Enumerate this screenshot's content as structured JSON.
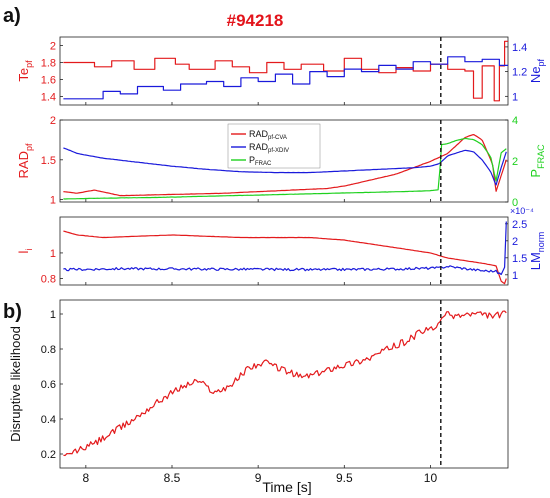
{
  "figure": {
    "panel_a_label": "a)",
    "panel_b_label": "b)",
    "shot_title": "#94218",
    "xlabel": "Time [s]",
    "disruption_marker_time": 10.06
  },
  "colors": {
    "red": "#e31a1c",
    "blue": "#1a1adb",
    "green": "#1fd11f",
    "black": "#111111",
    "title_red": "#e3141b"
  },
  "chart_data": [
    {
      "id": "te-ne",
      "type": "line",
      "xlim": [
        7.85,
        10.45
      ],
      "y_left": {
        "label": "Te",
        "label_sub": "pf",
        "ticks": [
          1.4,
          1.6,
          1.8,
          2
        ],
        "lim": [
          1.3,
          2.1
        ],
        "color": "#e31a1c"
      },
      "y_right": {
        "label": "Ne",
        "label_sub": "pf",
        "ticks": [
          1,
          1.2,
          1.4
        ],
        "lim": [
          0.93,
          1.48
        ],
        "color": "#1a1adb"
      },
      "series": [
        {
          "axis": "left",
          "color": "#e31a1c",
          "step": true,
          "x": [
            7.87,
            8.05,
            8.15,
            8.28,
            8.4,
            8.52,
            8.6,
            8.75,
            8.85,
            8.95,
            9.05,
            9.15,
            9.25,
            9.38,
            9.5,
            9.6,
            9.7,
            9.8,
            9.9,
            10.0,
            10.1,
            10.2,
            10.25,
            10.3,
            10.37,
            10.4,
            10.43
          ],
          "y": [
            1.8,
            1.75,
            1.82,
            1.72,
            1.85,
            1.78,
            1.72,
            1.82,
            1.75,
            1.68,
            1.8,
            1.72,
            1.78,
            1.7,
            1.85,
            1.72,
            1.68,
            1.74,
            1.7,
            1.78,
            1.72,
            1.7,
            1.38,
            1.76,
            1.35,
            1.76,
            2.05
          ]
        },
        {
          "axis": "right",
          "color": "#1a1adb",
          "step": true,
          "x": [
            7.87,
            8.0,
            8.1,
            8.2,
            8.3,
            8.45,
            8.55,
            8.7,
            8.8,
            8.9,
            9.0,
            9.1,
            9.2,
            9.3,
            9.4,
            9.5,
            9.6,
            9.7,
            9.8,
            9.9,
            10.0,
            10.1,
            10.2,
            10.3,
            10.4
          ],
          "y": [
            0.98,
            0.98,
            1.04,
            1.02,
            1.08,
            1.05,
            1.1,
            1.12,
            1.08,
            1.15,
            1.12,
            1.18,
            1.1,
            1.2,
            1.16,
            1.22,
            1.2,
            1.25,
            1.22,
            1.28,
            1.26,
            1.32,
            1.28,
            1.3,
            1.25
          ]
        }
      ]
    },
    {
      "id": "rad",
      "type": "line",
      "xlim": [
        7.85,
        10.45
      ],
      "y_left": {
        "label": "RAD",
        "label_sub": "pf",
        "ticks": [
          1,
          1.5,
          2
        ],
        "lim": [
          0.97,
          2.0
        ],
        "color": "#e31a1c"
      },
      "y_right": {
        "label": "P",
        "label_sub": "FRAC",
        "ticks": [
          0,
          2,
          4
        ],
        "lim": [
          0,
          4
        ],
        "color": "#1fd11f"
      },
      "legend": {
        "placement": "top-center",
        "entries": [
          {
            "base": "RAD",
            "sub": "pf-CVA",
            "color": "#e31a1c"
          },
          {
            "base": "RAD",
            "sub": "pf-XDIV",
            "color": "#1a1adb"
          },
          {
            "base": "P",
            "sub": "FRAC",
            "color": "#1fd11f"
          }
        ]
      },
      "series": [
        {
          "axis": "left",
          "color": "#e31a1c",
          "x": [
            7.87,
            7.95,
            8.05,
            8.2,
            8.4,
            8.6,
            8.8,
            9.0,
            9.2,
            9.4,
            9.5,
            9.6,
            9.7,
            9.8,
            9.9,
            10.0,
            10.05,
            10.1,
            10.15,
            10.2,
            10.25,
            10.3,
            10.33,
            10.36,
            10.38,
            10.41,
            10.44
          ],
          "y": [
            1.1,
            1.08,
            1.12,
            1.05,
            1.06,
            1.07,
            1.08,
            1.1,
            1.12,
            1.14,
            1.17,
            1.22,
            1.27,
            1.32,
            1.4,
            1.48,
            1.53,
            1.58,
            1.68,
            1.78,
            1.82,
            1.75,
            1.6,
            1.45,
            1.1,
            1.3,
            1.5
          ]
        },
        {
          "axis": "left",
          "color": "#1a1adb",
          "x": [
            7.87,
            7.95,
            8.1,
            8.3,
            8.5,
            8.7,
            8.9,
            9.1,
            9.3,
            9.5,
            9.7,
            9.9,
            10.0,
            10.05,
            10.1,
            10.2,
            10.25,
            10.3,
            10.35,
            10.38,
            10.41,
            10.44
          ],
          "y": [
            1.65,
            1.58,
            1.52,
            1.47,
            1.42,
            1.38,
            1.35,
            1.34,
            1.34,
            1.36,
            1.38,
            1.4,
            1.42,
            1.45,
            1.55,
            1.62,
            1.6,
            1.5,
            1.35,
            1.18,
            1.4,
            1.6
          ]
        },
        {
          "axis": "right",
          "color": "#1fd11f",
          "x": [
            7.87,
            8.0,
            8.2,
            8.4,
            8.6,
            8.8,
            9.0,
            9.2,
            9.4,
            9.6,
            9.8,
            10.0,
            10.05,
            10.06,
            10.1,
            10.15,
            10.2,
            10.25,
            10.3,
            10.35,
            10.38,
            10.41,
            10.44
          ],
          "y": [
            0.15,
            0.17,
            0.2,
            0.22,
            0.26,
            0.3,
            0.34,
            0.38,
            0.42,
            0.46,
            0.5,
            0.55,
            0.6,
            2.8,
            2.85,
            3.0,
            3.1,
            3.05,
            2.8,
            2.2,
            1.0,
            2.4,
            2.6
          ]
        }
      ]
    },
    {
      "id": "li-lm",
      "type": "line",
      "xlim": [
        7.85,
        10.45
      ],
      "y_left": {
        "label": "l",
        "label_sub": "i",
        "ticks": [
          0.8,
          1
        ],
        "lim": [
          0.75,
          1.28
        ],
        "color": "#e31a1c"
      },
      "y_right": {
        "label": "LM",
        "label_sub": "norm",
        "ticks": [
          1,
          1.5,
          2,
          2.5
        ],
        "lim": [
          0.7,
          2.7
        ],
        "color": "#1a1adb",
        "exponent": "×10⁻⁴"
      },
      "series": [
        {
          "axis": "left",
          "color": "#e31a1c",
          "x": [
            7.87,
            7.95,
            8.1,
            8.3,
            8.5,
            8.7,
            8.9,
            9.1,
            9.3,
            9.5,
            9.6,
            9.7,
            9.8,
            9.9,
            10.0,
            10.05,
            10.1,
            10.2,
            10.3,
            10.38,
            10.41,
            10.43,
            10.44
          ],
          "y": [
            1.17,
            1.14,
            1.12,
            1.13,
            1.14,
            1.13,
            1.12,
            1.12,
            1.12,
            1.1,
            1.08,
            1.06,
            1.04,
            1.02,
            1.0,
            0.98,
            0.96,
            0.94,
            0.92,
            0.9,
            0.78,
            0.76,
            0.8
          ]
        },
        {
          "axis": "right",
          "color": "#1a1adb",
          "noise": 0.035,
          "x": [
            7.87,
            8.2,
            8.6,
            9.0,
            9.4,
            9.8,
            10.05,
            10.1,
            10.2,
            10.3,
            10.38,
            10.41,
            10.43,
            10.44
          ],
          "y": [
            1.15,
            1.18,
            1.17,
            1.16,
            1.15,
            1.17,
            1.2,
            1.25,
            1.18,
            1.12,
            1.1,
            1.0,
            1.2,
            2.6
          ]
        }
      ]
    },
    {
      "id": "likelihood",
      "type": "line",
      "xlim": [
        7.85,
        10.45
      ],
      "ylabel": "Disruptive likelihood",
      "y_left": {
        "ticks": [
          0.2,
          0.4,
          0.6,
          0.8,
          1
        ],
        "lim": [
          0.12,
          1.08
        ],
        "color": "#111111"
      },
      "xticks": [
        8,
        8.5,
        9,
        9.5,
        10
      ],
      "series": [
        {
          "axis": "left",
          "color": "#e31a1c",
          "noise": 0.04,
          "x": [
            7.87,
            7.95,
            8.05,
            8.15,
            8.25,
            8.35,
            8.45,
            8.55,
            8.65,
            8.75,
            8.85,
            8.95,
            9.05,
            9.15,
            9.25,
            9.35,
            9.45,
            9.55,
            9.65,
            9.75,
            9.85,
            9.95,
            10.02,
            10.05,
            10.07,
            10.15,
            10.25,
            10.35,
            10.44
          ],
          "y": [
            0.18,
            0.22,
            0.26,
            0.32,
            0.38,
            0.45,
            0.52,
            0.58,
            0.62,
            0.55,
            0.6,
            0.7,
            0.72,
            0.68,
            0.64,
            0.66,
            0.7,
            0.72,
            0.75,
            0.8,
            0.84,
            0.9,
            0.92,
            0.93,
            1.0,
            0.99,
            1.0,
            0.99,
            1.0
          ]
        }
      ]
    }
  ]
}
